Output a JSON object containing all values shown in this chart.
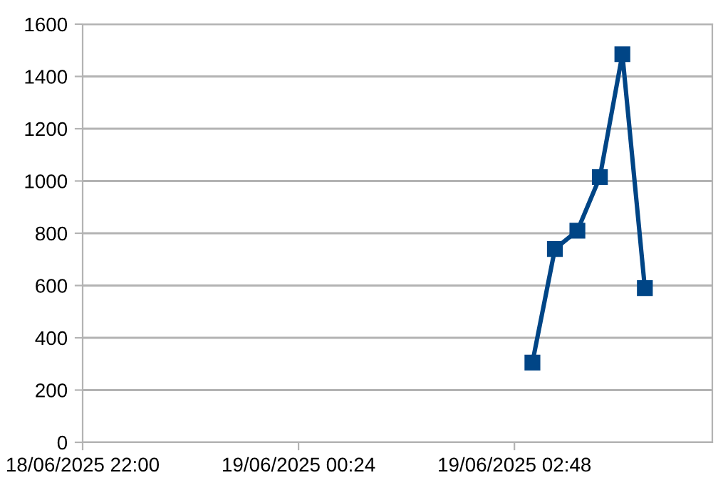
{
  "chart_data": {
    "type": "line",
    "x": [
      "2025-06-19T03:00",
      "2025-06-19T03:15",
      "2025-06-19T03:30",
      "2025-06-19T03:45",
      "2025-06-19T04:00",
      "2025-06-19T04:15"
    ],
    "series": [
      {
        "color": "#004586",
        "values": [
          305,
          740,
          810,
          1015,
          1485,
          590
        ]
      }
    ],
    "xlim": [
      "2025-06-18T22:00",
      "2025-06-19T05:00"
    ],
    "xticks": [
      {
        "value": "2025-06-18T22:00",
        "label": "18/06/2025 22:00"
      },
      {
        "value": "2025-06-19T00:24",
        "label": "19/06/2025 00:24"
      },
      {
        "value": "2025-06-19T02:48",
        "label": "19/06/2025 02:48"
      }
    ],
    "ylim": [
      0,
      1600
    ],
    "yticks": [
      0,
      200,
      400,
      600,
      800,
      1000,
      1200,
      1400,
      1600
    ],
    "grid": "y",
    "marker": "square",
    "line_style": "solid",
    "legend": false
  }
}
